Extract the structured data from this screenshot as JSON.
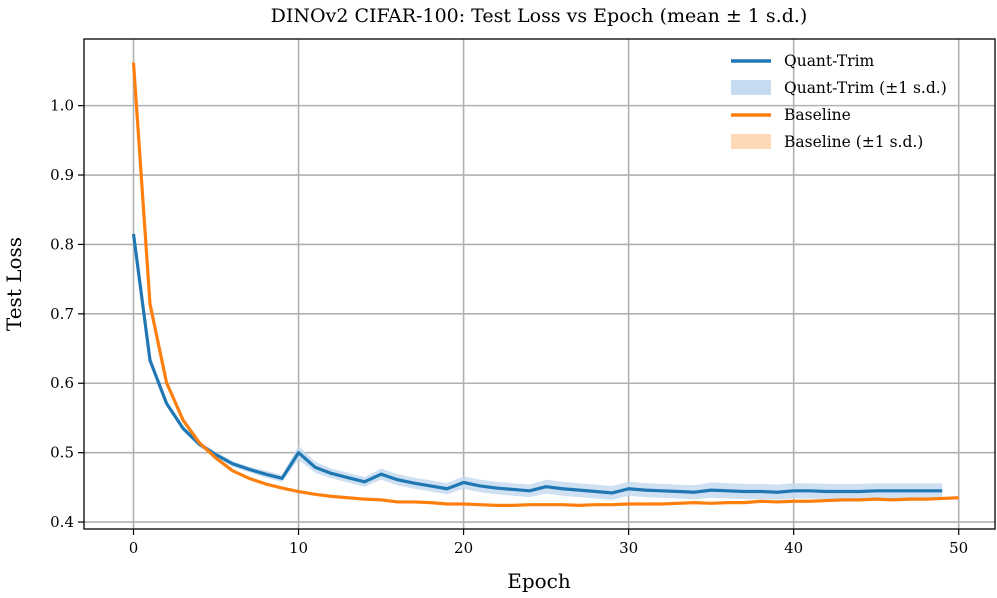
{
  "chart_data": {
    "type": "line",
    "title": "DINOv2 CIFAR-100: Test Loss vs Epoch (mean ± 1 s.d.)",
    "xlabel": "Epoch",
    "ylabel": "Test Loss",
    "xlim": [
      -3,
      52.2
    ],
    "ylim": [
      0.39,
      1.096
    ],
    "xticks": [
      0,
      10,
      20,
      30,
      40,
      50
    ],
    "yticks": [
      0.4,
      0.5,
      0.6,
      0.7,
      0.8,
      0.9,
      1.0
    ],
    "ytick_labels": [
      "0.4",
      "0.5",
      "0.6",
      "0.7",
      "0.8",
      "0.9",
      "1.0"
    ],
    "grid": true,
    "legend_position": "top-right",
    "series": [
      {
        "name": "Quant-Trim",
        "band_name": "Quant-Trim (±1 s.d.)",
        "color": "#1f77b4",
        "band_color": "#c6dbef",
        "x": [
          0,
          1,
          2,
          3,
          4,
          5,
          6,
          7,
          8,
          9,
          10,
          11,
          12,
          13,
          14,
          15,
          16,
          17,
          18,
          19,
          20,
          21,
          22,
          23,
          24,
          25,
          26,
          27,
          28,
          29,
          30,
          31,
          32,
          33,
          34,
          35,
          36,
          37,
          38,
          39,
          40,
          41,
          42,
          43,
          44,
          45,
          46,
          47,
          48,
          49
        ],
        "values": [
          0.815,
          0.633,
          0.571,
          0.535,
          0.512,
          0.497,
          0.484,
          0.476,
          0.469,
          0.463,
          0.5,
          0.479,
          0.47,
          0.464,
          0.458,
          0.469,
          0.461,
          0.456,
          0.452,
          0.448,
          0.457,
          0.452,
          0.449,
          0.447,
          0.445,
          0.451,
          0.448,
          0.446,
          0.444,
          0.442,
          0.448,
          0.446,
          0.445,
          0.444,
          0.443,
          0.446,
          0.445,
          0.444,
          0.444,
          0.443,
          0.445,
          0.445,
          0.444,
          0.444,
          0.444,
          0.445,
          0.445,
          0.445,
          0.445,
          0.445
        ],
        "sd": [
          0.003,
          0.004,
          0.004,
          0.004,
          0.004,
          0.004,
          0.004,
          0.004,
          0.005,
          0.005,
          0.01,
          0.008,
          0.007,
          0.007,
          0.007,
          0.008,
          0.008,
          0.008,
          0.008,
          0.008,
          0.009,
          0.009,
          0.009,
          0.009,
          0.009,
          0.01,
          0.01,
          0.01,
          0.01,
          0.01,
          0.01,
          0.01,
          0.01,
          0.01,
          0.01,
          0.011,
          0.011,
          0.011,
          0.011,
          0.011,
          0.011,
          0.011,
          0.011,
          0.011,
          0.011,
          0.011,
          0.011,
          0.011,
          0.011,
          0.011
        ]
      },
      {
        "name": "Baseline",
        "band_name": "Baseline (±1 s.d.)",
        "color": "#ff7f0e",
        "band_color": "#ffd8b5",
        "x": [
          0,
          1,
          2,
          3,
          4,
          5,
          6,
          7,
          8,
          9,
          10,
          11,
          12,
          13,
          14,
          15,
          16,
          17,
          18,
          19,
          20,
          21,
          22,
          23,
          24,
          25,
          26,
          27,
          28,
          29,
          30,
          31,
          32,
          33,
          34,
          35,
          36,
          37,
          38,
          39,
          40,
          41,
          42,
          43,
          44,
          45,
          46,
          47,
          48,
          49,
          50
        ],
        "values": [
          1.062,
          0.714,
          0.601,
          0.547,
          0.514,
          0.492,
          0.474,
          0.463,
          0.455,
          0.449,
          0.444,
          0.44,
          0.437,
          0.435,
          0.433,
          0.432,
          0.429,
          0.429,
          0.428,
          0.426,
          0.426,
          0.425,
          0.424,
          0.424,
          0.425,
          0.425,
          0.425,
          0.424,
          0.425,
          0.425,
          0.426,
          0.426,
          0.426,
          0.427,
          0.428,
          0.427,
          0.428,
          0.428,
          0.43,
          0.429,
          0.43,
          0.43,
          0.431,
          0.432,
          0.432,
          0.433,
          0.432,
          0.433,
          0.433,
          0.434,
          0.435
        ],
        "sd": [
          0.001,
          0.001,
          0.001,
          0.001,
          0.001,
          0.001,
          0.001,
          0.001,
          0.001,
          0.001,
          0.001,
          0.001,
          0.001,
          0.001,
          0.001,
          0.001,
          0.001,
          0.001,
          0.001,
          0.001,
          0.001,
          0.001,
          0.001,
          0.001,
          0.001,
          0.001,
          0.001,
          0.001,
          0.001,
          0.001,
          0.001,
          0.001,
          0.001,
          0.001,
          0.001,
          0.001,
          0.001,
          0.001,
          0.001,
          0.001,
          0.001,
          0.001,
          0.001,
          0.001,
          0.001,
          0.001,
          0.001,
          0.001,
          0.001,
          0.001,
          0.001
        ]
      }
    ]
  }
}
